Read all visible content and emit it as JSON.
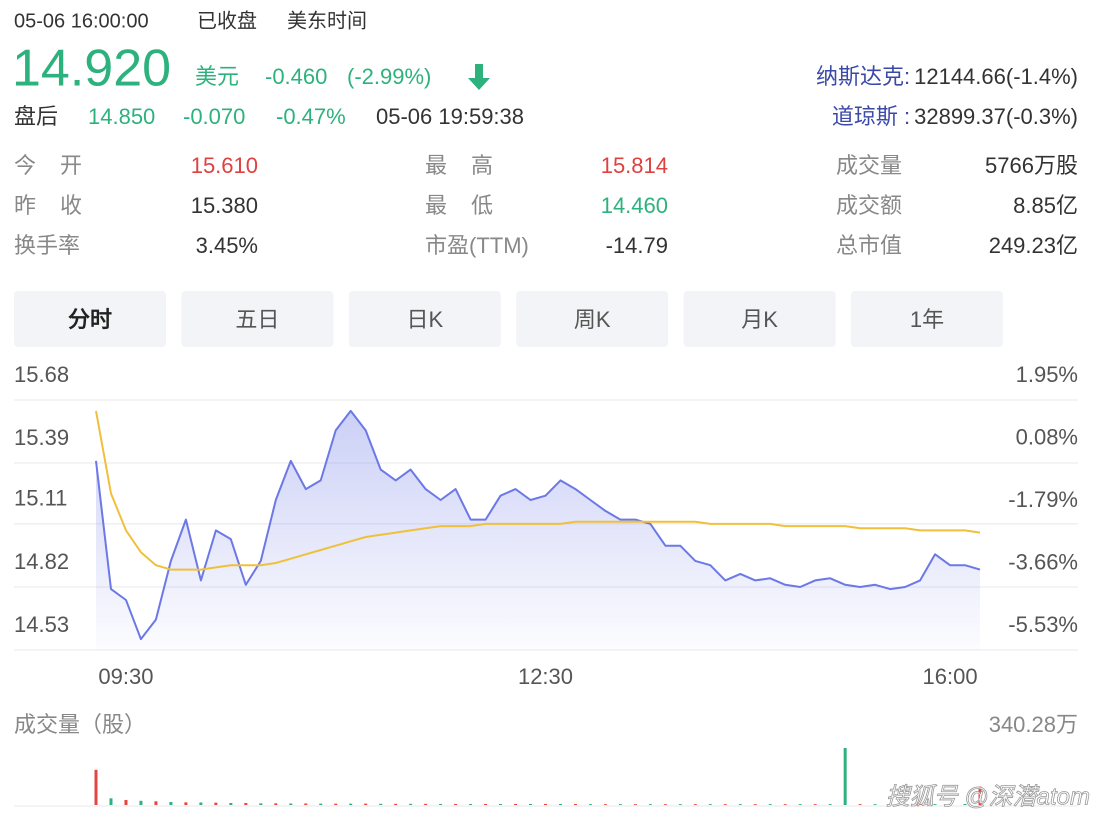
{
  "header": {
    "datetime": "05-06 16:00:00",
    "status": "已收盘",
    "timezone": "美东时间",
    "price": "14.920",
    "currency": "美元",
    "change": "-0.460",
    "change_pct": "(-2.99%)",
    "after_hours": {
      "label": "盘后",
      "price": "14.850",
      "change": "-0.070",
      "change_pct": "-0.47%",
      "datetime": "05-06 19:59:38"
    }
  },
  "indices": [
    {
      "label": "纳斯达克:",
      "value": "12144.66(-1.4%)"
    },
    {
      "label": "道琼斯 :",
      "value": "32899.37(-0.3%)"
    }
  ],
  "stats": [
    [
      {
        "label": "今 开",
        "value": "15.610",
        "color": "#e0403f"
      },
      {
        "label": "最 高",
        "value": "15.814",
        "color": "#e0403f"
      },
      {
        "label": "成交量",
        "value": "5766万股",
        "color": "#333333"
      }
    ],
    [
      {
        "label": "昨 收",
        "value": "15.380",
        "color": "#333333"
      },
      {
        "label": "最 低",
        "value": "14.460",
        "color": "#2db27d"
      },
      {
        "label": "成交额",
        "value": "8.85亿",
        "color": "#333333"
      }
    ],
    [
      {
        "label": "换手率",
        "value": "3.45%",
        "color": "#333333"
      },
      {
        "label": "市盈(TTM)",
        "value": "-14.79",
        "color": "#333333"
      },
      {
        "label": "总市值",
        "value": "249.23亿",
        "color": "#333333"
      }
    ]
  ],
  "tabs": {
    "items": [
      "分时",
      "五日",
      "日K",
      "周K",
      "月K",
      "1年"
    ],
    "active": 0
  },
  "watermark": "搜狐号 @深潜atom",
  "chart_data": [
    {
      "type": "line",
      "categories": [
        null,
        null,
        "09:30",
        null,
        null,
        null,
        null,
        null,
        null,
        null,
        null,
        null,
        null,
        null,
        null,
        null,
        null,
        null,
        null,
        null,
        null,
        null,
        null,
        null,
        null,
        null,
        null,
        null,
        null,
        null,
        "12:30",
        null,
        null,
        null,
        null,
        null,
        null,
        null,
        null,
        null,
        null,
        null,
        null,
        null,
        null,
        null,
        null,
        null,
        null,
        null,
        null,
        null,
        null,
        null,
        null,
        null,
        null,
        "16:00",
        null,
        null
      ],
      "series": [
        {
          "color": "#6b78e5",
          "area": true,
          "values": [
            15.4,
            14.81,
            14.76,
            14.58,
            14.67,
            14.94,
            15.13,
            14.85,
            15.08,
            15.04,
            14.83,
            14.94,
            15.22,
            15.4,
            15.27,
            15.31,
            15.54,
            15.63,
            15.54,
            15.36,
            15.31,
            15.36,
            15.27,
            15.22,
            15.27,
            15.13,
            15.13,
            15.24,
            15.27,
            15.22,
            15.24,
            15.31,
            15.27,
            15.22,
            15.17,
            15.13,
            15.13,
            15.11,
            15.01,
            15.01,
            14.94,
            14.92,
            14.85,
            14.88,
            14.85,
            14.86,
            14.83,
            14.82,
            14.85,
            14.86,
            14.83,
            14.82,
            14.83,
            14.81,
            14.82,
            14.85,
            14.97,
            14.92,
            14.92,
            14.9
          ]
        },
        {
          "color": "#f0c03a",
          "values": [
            15.63,
            15.25,
            15.08,
            14.98,
            14.92,
            14.9,
            14.9,
            14.9,
            14.91,
            14.92,
            14.92,
            14.92,
            14.93,
            14.95,
            14.97,
            14.99,
            15.01,
            15.03,
            15.05,
            15.06,
            15.07,
            15.08,
            15.09,
            15.1,
            15.1,
            15.1,
            15.11,
            15.11,
            15.11,
            15.11,
            15.11,
            15.11,
            15.12,
            15.12,
            15.12,
            15.12,
            15.12,
            15.12,
            15.12,
            15.12,
            15.12,
            15.11,
            15.11,
            15.11,
            15.11,
            15.11,
            15.1,
            15.1,
            15.1,
            15.1,
            15.1,
            15.09,
            15.09,
            15.09,
            15.09,
            15.08,
            15.08,
            15.08,
            15.08,
            15.07
          ]
        }
      ],
      "ylim": [
        14.53,
        15.68
      ],
      "yticks": [
        15.68,
        15.39,
        15.11,
        14.82,
        14.53
      ],
      "y2lim": [
        -5.53,
        1.95
      ],
      "y2ticks": [
        {
          "value": 1.95,
          "label": "1.95%"
        },
        {
          "value": 0.08,
          "label": "0.08%"
        },
        {
          "value": -1.79,
          "label": "-1.79%"
        },
        {
          "value": -3.66,
          "label": "-3.66%"
        },
        {
          "value": -5.53,
          "label": "-5.53%"
        }
      ],
      "grid": true
    },
    {
      "type": "bar",
      "title": "成交量（股）",
      "values": [
        210,
        40,
        30,
        25,
        22,
        18,
        16,
        15,
        14,
        12,
        12,
        10,
        10,
        9,
        9,
        8,
        8,
        8,
        8,
        7,
        7,
        7,
        7,
        6,
        6,
        6,
        6,
        6,
        6,
        6,
        6,
        6,
        6,
        5,
        5,
        5,
        5,
        5,
        5,
        5,
        5,
        5,
        5,
        5,
        5,
        5,
        5,
        5,
        5,
        5,
        340.28,
        5,
        5,
        5,
        5,
        5,
        5,
        5,
        6,
        110
      ],
      "colors": [
        "#e5473f",
        "#2db27d",
        "#e5473f",
        "#2db27d",
        "#e5473f",
        "#2db27d",
        "#e5473f",
        "#2db27d",
        "#e5473f",
        "#2db27d",
        "#e5473f",
        "#2db27d",
        "#e5473f",
        "#2db27d",
        "#e5473f",
        "#2db27d",
        "#e5473f",
        "#2db27d",
        "#e5473f",
        "#2db27d",
        "#e5473f",
        "#2db27d",
        "#e5473f",
        "#2db27d",
        "#e5473f",
        "#2db27d",
        "#e5473f",
        "#2db27d",
        "#e5473f",
        "#2db27d",
        "#e5473f",
        "#2db27d",
        "#e5473f",
        "#2db27d",
        "#e5473f",
        "#2db27d",
        "#e5473f",
        "#2db27d",
        "#e5473f",
        "#2db27d",
        "#e5473f",
        "#2db27d",
        "#e5473f",
        "#2db27d",
        "#e5473f",
        "#2db27d",
        "#e5473f",
        "#2db27d",
        "#e5473f",
        "#2db27d",
        "#2db27d",
        "#e5473f",
        "#2db27d",
        "#e5473f",
        "#2db27d",
        "#e5473f",
        "#2db27d",
        "#e5473f",
        "#2db27d",
        "#e5473f"
      ],
      "ylim": [
        0,
        340.28
      ],
      "yticks": [
        {
          "value": 340.28,
          "label": "340.28万"
        }
      ]
    }
  ]
}
